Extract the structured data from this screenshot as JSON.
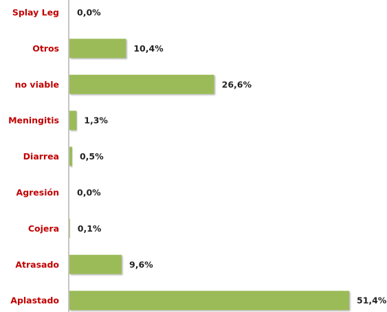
{
  "chart_data": {
    "type": "hbar",
    "categories": [
      "Splay Leg",
      "Otros",
      "no viable",
      "Meningitis",
      "Diarrea",
      "Agresión",
      "Cojera",
      "Atrasado",
      "Aplastado"
    ],
    "values": [
      0.0,
      10.4,
      26.6,
      1.3,
      0.5,
      0.0,
      0.1,
      9.6,
      51.4
    ],
    "value_labels": [
      "0,0%",
      "10,4%",
      "26,6%",
      "1,3%",
      "0,5%",
      "0,0%",
      "0,1%",
      "9,6%",
      "51,4%"
    ],
    "color": "#9bbb59"
  }
}
